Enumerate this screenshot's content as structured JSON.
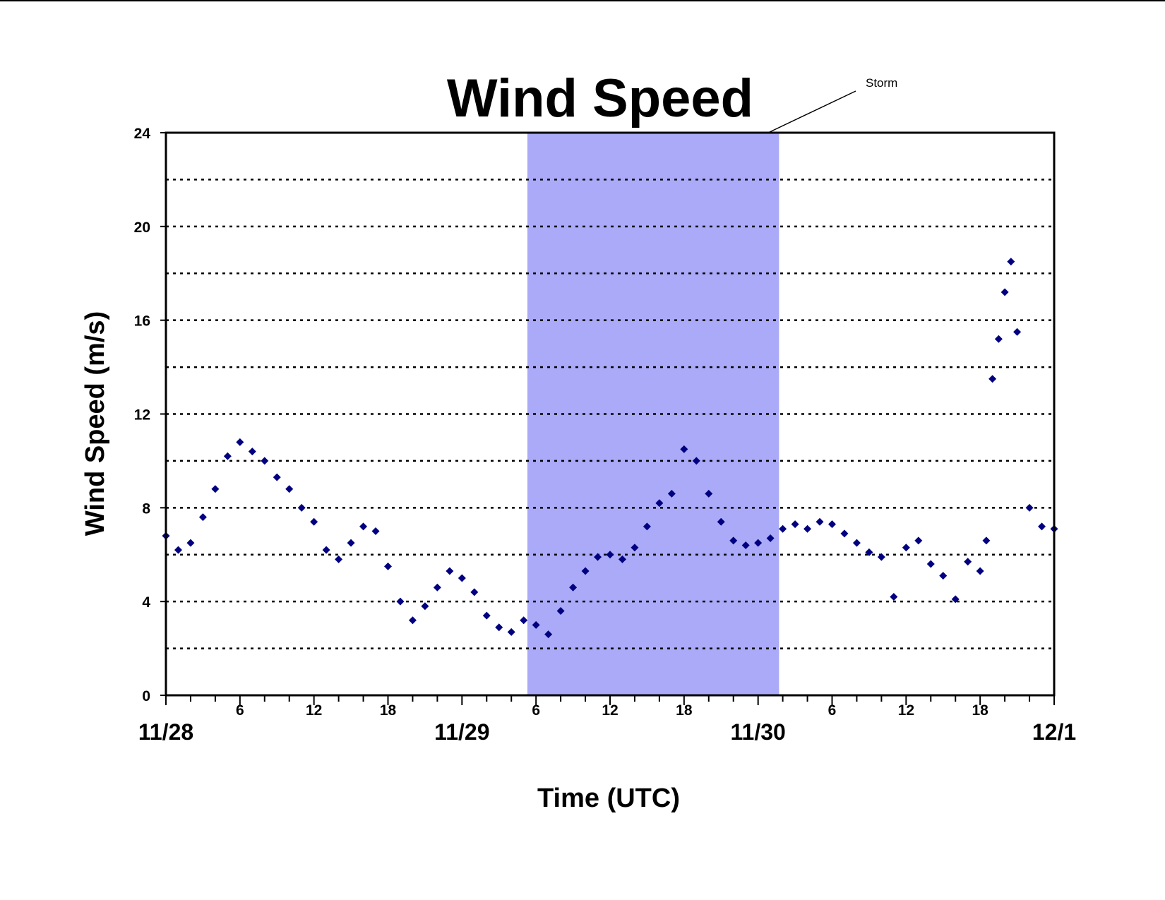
{
  "chart_data": {
    "type": "scatter",
    "title": "Wind Speed",
    "xlabel": "Time (UTC)",
    "ylabel": "Wind Speed (m/s)",
    "x_unit": "hours from 11/28 00:00 UTC",
    "xlim": [
      0,
      72
    ],
    "ylim": [
      0,
      24
    ],
    "y_ticks": [
      0,
      4,
      8,
      12,
      16,
      20,
      24
    ],
    "y_gridlines": [
      2,
      4,
      6,
      8,
      10,
      12,
      14,
      16,
      18,
      20,
      22
    ],
    "grid": "horizontal-dotted",
    "hour_labels": [
      {
        "x": 6,
        "label": "6"
      },
      {
        "x": 12,
        "label": "12"
      },
      {
        "x": 18,
        "label": "18"
      },
      {
        "x": 30,
        "label": "6"
      },
      {
        "x": 36,
        "label": "12"
      },
      {
        "x": 42,
        "label": "18"
      },
      {
        "x": 54,
        "label": "6"
      },
      {
        "x": 60,
        "label": "12"
      },
      {
        "x": 66,
        "label": "18"
      }
    ],
    "date_labels": [
      {
        "x": 0,
        "label": "11/28"
      },
      {
        "x": 24,
        "label": "11/29"
      },
      {
        "x": 48,
        "label": "11/30"
      },
      {
        "x": 72,
        "label": "12/1"
      }
    ],
    "shaded_region": {
      "label": "Storm",
      "x_start": 29.3,
      "x_end": 49.7,
      "color": "#aaaaf8"
    },
    "marker_color": "#000080",
    "series": [
      {
        "x": [
          0,
          1,
          2,
          3,
          4,
          5,
          6,
          7,
          8,
          9,
          10,
          11,
          12,
          13,
          14,
          15,
          16,
          17,
          18,
          19,
          20,
          21,
          22,
          23,
          24,
          25,
          26,
          27,
          28,
          29,
          30,
          31,
          32,
          33,
          34,
          35,
          36,
          37,
          38,
          39,
          40,
          41,
          42,
          43,
          44,
          45,
          46,
          47,
          48,
          49,
          50,
          51,
          52,
          53,
          54,
          55,
          56,
          57,
          58,
          59,
          60,
          61,
          62,
          63,
          64,
          65,
          66,
          66.5,
          67,
          67.5,
          68,
          68.5,
          69,
          70,
          71,
          72
        ],
        "y": [
          6.8,
          6.2,
          6.5,
          7.6,
          8.8,
          10.2,
          10.8,
          10.4,
          10.0,
          9.3,
          8.8,
          8.0,
          7.4,
          6.2,
          5.8,
          6.5,
          7.2,
          7.0,
          5.5,
          4.0,
          3.2,
          3.8,
          4.6,
          5.3,
          5.0,
          4.4,
          3.4,
          2.9,
          2.7,
          3.2,
          3.0,
          2.6,
          3.6,
          4.6,
          5.3,
          5.9,
          6.0,
          5.8,
          6.3,
          7.2,
          8.2,
          8.6,
          10.5,
          10.0,
          8.6,
          7.4,
          6.6,
          6.4,
          6.5,
          6.7,
          7.1,
          7.3,
          7.1,
          7.4,
          7.3,
          6.9,
          6.5,
          6.1,
          5.9,
          4.2,
          6.3,
          6.6,
          5.6,
          5.1,
          4.1,
          5.7,
          5.3,
          6.6,
          13.5,
          15.2,
          17.2,
          18.5,
          15.5,
          8.0,
          7.2,
          7.1
        ]
      }
    ]
  }
}
